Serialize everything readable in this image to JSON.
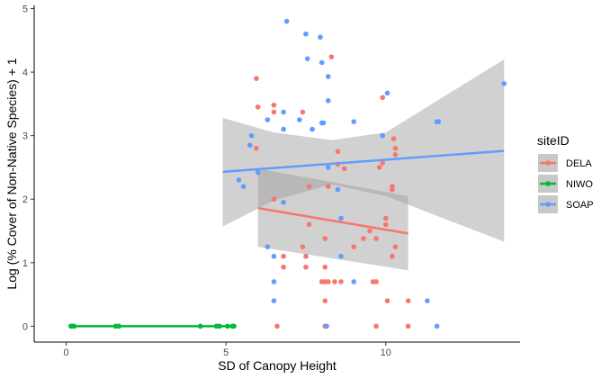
{
  "chart_data": {
    "type": "scatter",
    "xlabel": "SD of Canopy Height",
    "ylabel": "Log (% Cover of Non-Native Species) + 1",
    "xlim": [
      -1.0,
      14.2
    ],
    "ylim": [
      -0.25,
      5.05
    ],
    "x_ticks": [
      0,
      5,
      10
    ],
    "y_ticks": [
      0,
      1,
      2,
      3,
      4,
      5
    ],
    "legend": {
      "title": "siteID",
      "position": "right"
    },
    "series": [
      {
        "name": "DELA",
        "color": "#F8766D",
        "points": [
          [
            5.95,
            3.9
          ],
          [
            6.0,
            3.45
          ],
          [
            5.95,
            2.8
          ],
          [
            6.5,
            3.48
          ],
          [
            6.5,
            3.37
          ],
          [
            7.4,
            3.37
          ],
          [
            8.3,
            4.24
          ],
          [
            7.6,
            2.2
          ],
          [
            6.5,
            2.0
          ],
          [
            6.6,
            0.0
          ],
          [
            6.8,
            1.1
          ],
          [
            6.8,
            0.93
          ],
          [
            7.6,
            1.6
          ],
          [
            7.4,
            1.25
          ],
          [
            7.5,
            1.1
          ],
          [
            7.5,
            0.93
          ],
          [
            8.1,
            1.38
          ],
          [
            8.2,
            2.2
          ],
          [
            8.5,
            2.75
          ],
          [
            8.5,
            2.55
          ],
          [
            8.7,
            2.48
          ],
          [
            8.1,
            0.93
          ],
          [
            8.0,
            0.7
          ],
          [
            8.1,
            0.7
          ],
          [
            8.2,
            0.7
          ],
          [
            8.4,
            0.7
          ],
          [
            8.6,
            0.7
          ],
          [
            8.1,
            0.4
          ],
          [
            8.1,
            0.0
          ],
          [
            9.0,
            1.25
          ],
          [
            9.3,
            1.38
          ],
          [
            9.5,
            1.5
          ],
          [
            9.7,
            1.38
          ],
          [
            9.8,
            2.5
          ],
          [
            9.9,
            2.57
          ],
          [
            9.9,
            3.6
          ],
          [
            10.0,
            1.7
          ],
          [
            10.0,
            1.6
          ],
          [
            10.2,
            2.2
          ],
          [
            10.2,
            2.15
          ],
          [
            10.25,
            2.95
          ],
          [
            10.3,
            2.8
          ],
          [
            10.3,
            2.7
          ],
          [
            10.3,
            1.25
          ],
          [
            10.2,
            1.1
          ],
          [
            9.6,
            0.7
          ],
          [
            9.7,
            0.7
          ],
          [
            10.05,
            0.4
          ],
          [
            10.7,
            0.4
          ],
          [
            9.7,
            0.0
          ],
          [
            10.7,
            0.0
          ]
        ],
        "fit": {
          "x": [
            6.0,
            10.7
          ],
          "y": [
            1.86,
            1.46
          ]
        },
        "ci": {
          "x": [
            6.0,
            10.7
          ],
          "upper": [
            2.48,
            2.05
          ],
          "lower": [
            1.25,
            0.88
          ]
        }
      },
      {
        "name": "NIWO",
        "color": "#00BA38",
        "points": [
          [
            0.15,
            0.0
          ],
          [
            0.2,
            0.0
          ],
          [
            0.25,
            0.0
          ],
          [
            1.55,
            0.0
          ],
          [
            1.65,
            0.0
          ],
          [
            4.2,
            0.0
          ],
          [
            4.7,
            0.0
          ],
          [
            4.8,
            0.0
          ],
          [
            5.05,
            0.0
          ],
          [
            5.2,
            0.0
          ],
          [
            5.25,
            0.0
          ]
        ],
        "fit": {
          "x": [
            0.1,
            5.25
          ],
          "y": [
            0.0,
            0.0
          ]
        }
      },
      {
        "name": "SOAP",
        "color": "#619CFF",
        "points": [
          [
            6.9,
            4.8
          ],
          [
            7.5,
            4.6
          ],
          [
            7.55,
            4.21
          ],
          [
            7.95,
            4.55
          ],
          [
            8.0,
            4.15
          ],
          [
            8.2,
            3.93
          ],
          [
            8.2,
            3.55
          ],
          [
            6.3,
            3.25
          ],
          [
            6.8,
            3.37
          ],
          [
            6.8,
            3.1
          ],
          [
            7.3,
            3.25
          ],
          [
            7.7,
            3.1
          ],
          [
            8.0,
            3.2
          ],
          [
            8.05,
            3.2
          ],
          [
            5.8,
            3.0
          ],
          [
            5.75,
            2.85
          ],
          [
            9.0,
            3.22
          ],
          [
            9.9,
            3.0
          ],
          [
            10.05,
            3.67
          ],
          [
            11.6,
            3.22
          ],
          [
            11.65,
            3.22
          ],
          [
            13.7,
            3.82
          ],
          [
            5.4,
            2.3
          ],
          [
            5.55,
            2.2
          ],
          [
            6.0,
            2.42
          ],
          [
            8.2,
            2.5
          ],
          [
            8.5,
            2.15
          ],
          [
            6.8,
            1.95
          ],
          [
            8.6,
            1.7
          ],
          [
            6.3,
            1.25
          ],
          [
            6.5,
            1.1
          ],
          [
            8.6,
            1.1
          ],
          [
            6.5,
            0.7
          ],
          [
            9.0,
            0.7
          ],
          [
            6.5,
            0.4
          ],
          [
            11.3,
            0.4
          ],
          [
            8.15,
            0.0
          ],
          [
            11.6,
            0.0
          ]
        ],
        "fit": {
          "x": [
            4.9,
            13.7
          ],
          "y": [
            2.43,
            2.76
          ]
        },
        "ci": {
          "x": [
            4.9,
            6.5,
            8.3,
            10.0,
            13.7
          ],
          "upper": [
            3.28,
            3.05,
            2.93,
            3.05,
            4.2
          ],
          "lower": [
            1.57,
            1.98,
            2.23,
            2.05,
            1.33
          ]
        }
      }
    ]
  }
}
